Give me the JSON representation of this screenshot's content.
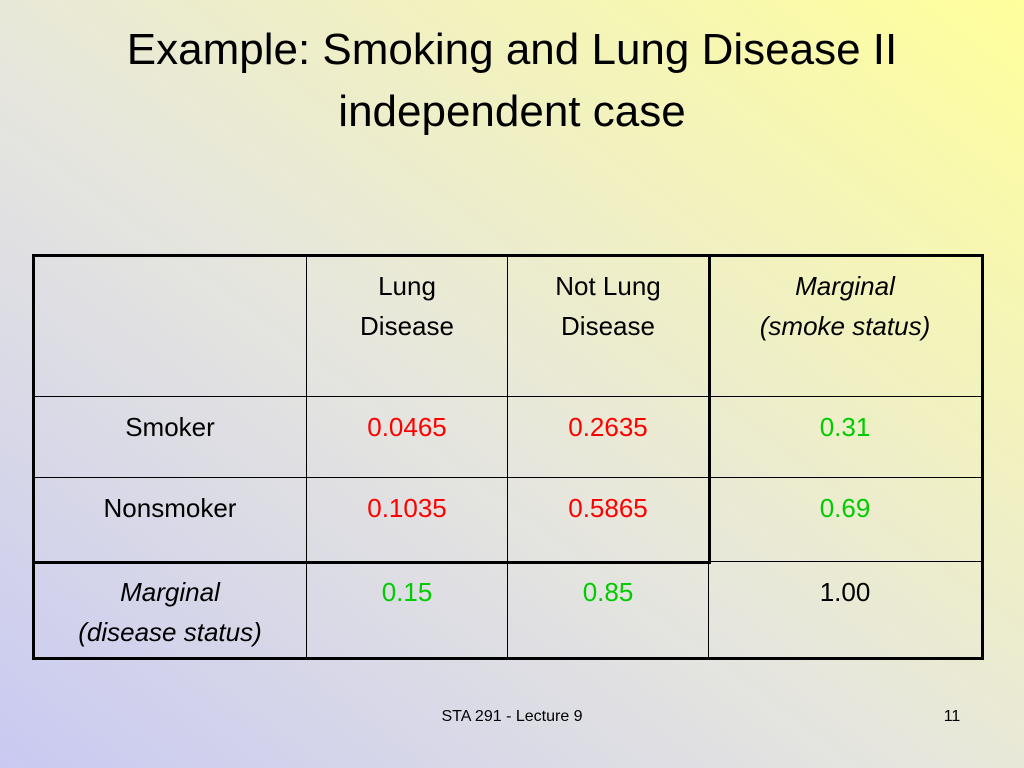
{
  "title": {
    "line1": "Example: Smoking and Lung Disease II",
    "line2": "independent case"
  },
  "table": {
    "header": [
      "Lung\nDisease",
      "Not Lung\nDisease",
      "Marginal\n(smoke status)"
    ],
    "rows": [
      {
        "label": "Smoker",
        "cells": [
          "0.0465",
          "0.2635",
          "0.31"
        ]
      },
      {
        "label": "Nonsmoker",
        "cells": [
          "0.1035",
          "0.5865",
          "0.69"
        ]
      },
      {
        "label": "Marginal\n(disease status)",
        "cells": [
          "0.15",
          "0.85",
          "1.00"
        ]
      }
    ]
  },
  "footer": {
    "course": "STA 291 - Lecture 9",
    "page": "11"
  }
}
